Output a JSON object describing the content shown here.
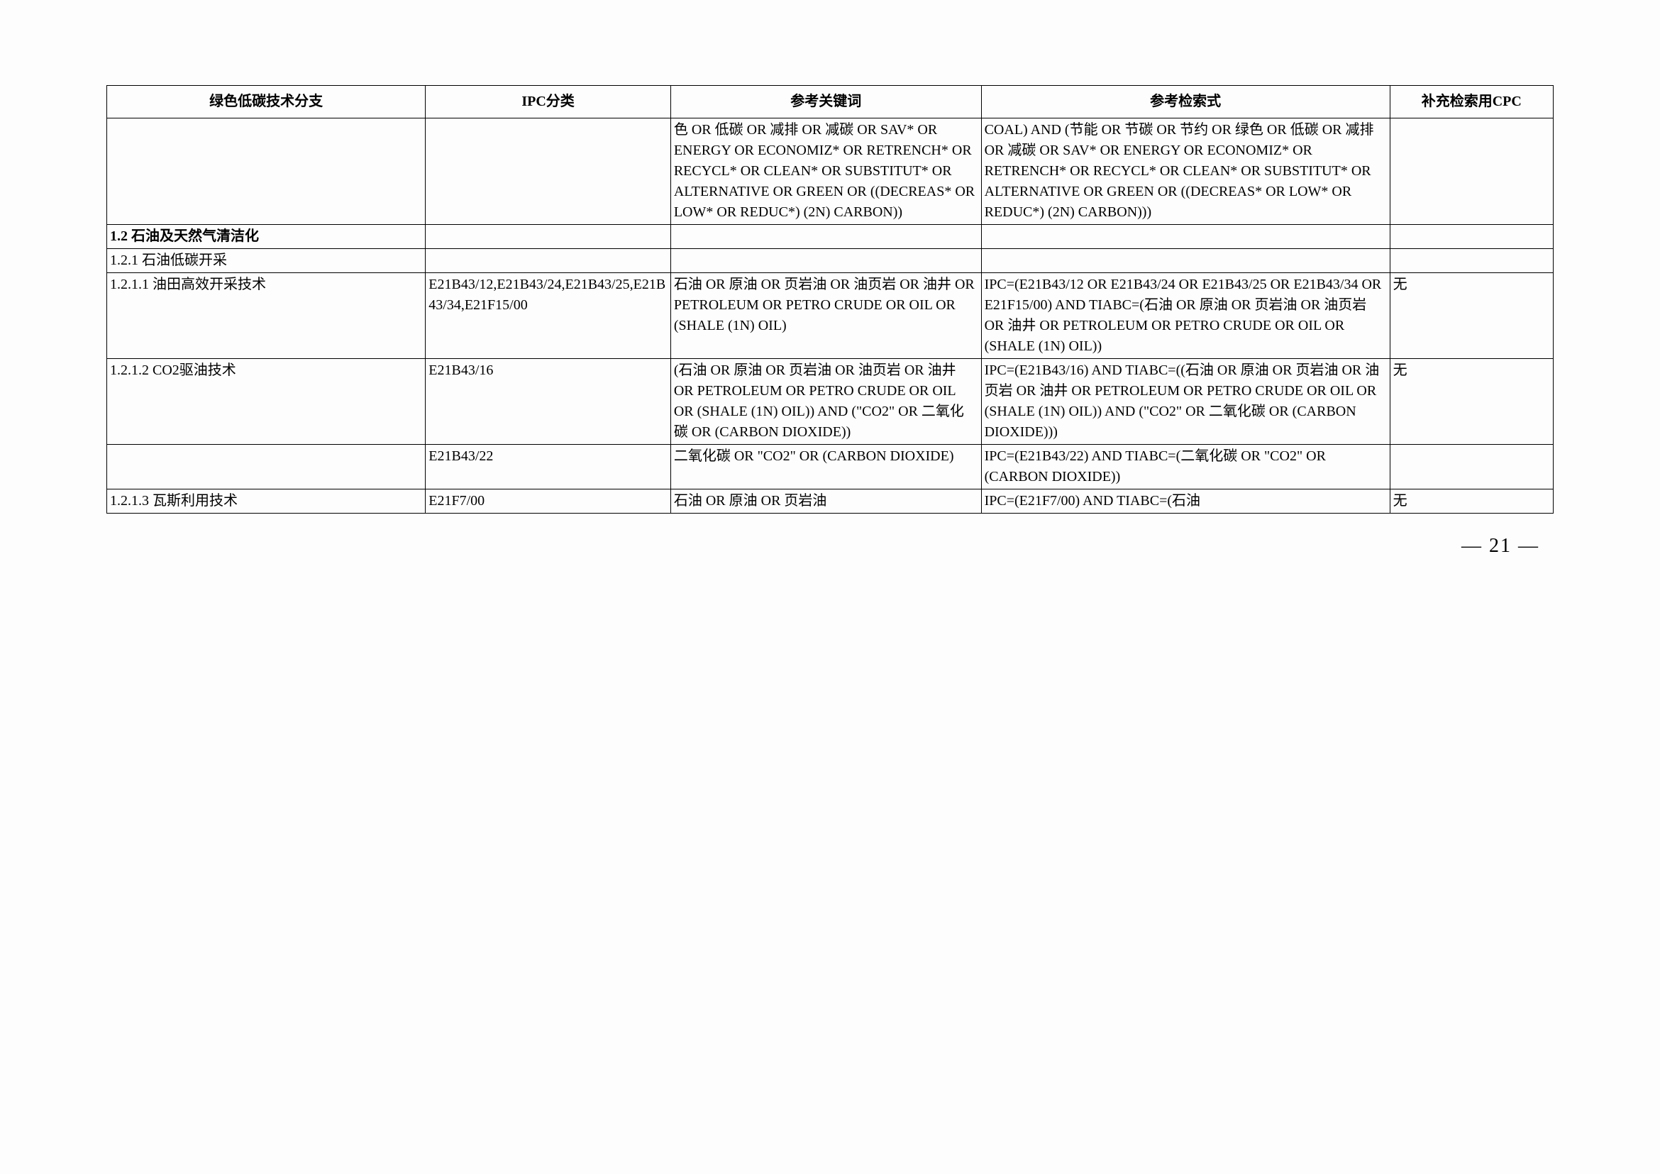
{
  "headers": {
    "c1": "绿色低碳技术分支",
    "c2": "IPC分类",
    "c3": "参考关键词",
    "c4": "参考检索式",
    "c5": "补充检索用CPC"
  },
  "rows": [
    {
      "c1": "",
      "c2": "",
      "c3": "色 OR 低碳 OR 减排 OR 减碳 OR SAV* OR ENERGY OR ECONOMIZ* OR RETRENCH* OR RECYCL* OR CLEAN* OR SUBSTITUT* OR ALTERNATIVE OR GREEN OR ((DECREAS* OR LOW* OR REDUC*) (2N) CARBON))",
      "c4": "COAL) AND (节能 OR 节碳 OR 节约 OR 绿色 OR 低碳 OR 减排 OR 减碳 OR SAV* OR ENERGY OR ECONOMIZ* OR RETRENCH* OR RECYCL* OR CLEAN* OR SUBSTITUT* OR ALTERNATIVE OR GREEN OR ((DECREAS* OR LOW* OR REDUC*) (2N) CARBON)))",
      "c5": "",
      "bold": false
    },
    {
      "c1": "1.2 石油及天然气清洁化",
      "c2": "",
      "c3": "",
      "c4": "",
      "c5": "",
      "bold": true
    },
    {
      "c1": "1.2.1 石油低碳开采",
      "c2": "",
      "c3": "",
      "c4": "",
      "c5": "",
      "bold": false
    },
    {
      "c1": "1.2.1.1 油田高效开采技术",
      "c2": "E21B43/12,E21B43/24,E21B43/25,E21B43/34,E21F15/00",
      "c3": "石油 OR 原油 OR 页岩油 OR 油页岩 OR 油井 OR PETROLEUM OR PETRO CRUDE OR OIL OR (SHALE (1N) OIL)",
      "c4": "IPC=(E21B43/12 OR E21B43/24 OR E21B43/25 OR E21B43/34 OR E21F15/00) AND TIABC=(石油 OR 原油 OR 页岩油 OR 油页岩 OR 油井 OR PETROLEUM OR PETRO CRUDE OR OIL OR (SHALE (1N) OIL))",
      "c5": "无",
      "bold": false
    },
    {
      "c1": "1.2.1.2 CO2驱油技术",
      "c2": "E21B43/16",
      "c3": "(石油 OR 原油 OR 页岩油 OR 油页岩 OR 油井 OR PETROLEUM OR PETRO CRUDE OR OIL OR (SHALE (1N) OIL)) AND (\"CO2\" OR 二氧化碳 OR (CARBON DIOXIDE))",
      "c4": "IPC=(E21B43/16) AND TIABC=((石油 OR 原油 OR 页岩油 OR 油页岩 OR 油井 OR PETROLEUM OR PETRO CRUDE OR OIL OR (SHALE (1N) OIL)) AND (\"CO2\" OR 二氧化碳 OR (CARBON DIOXIDE)))",
      "c5": "无",
      "bold": false
    },
    {
      "c1": "",
      "c2": "E21B43/22",
      "c3": "二氧化碳 OR \"CO2\" OR (CARBON DIOXIDE)",
      "c4": "IPC=(E21B43/22) AND TIABC=(二氧化碳 OR \"CO2\" OR (CARBON DIOXIDE))",
      "c5": "",
      "bold": false
    },
    {
      "c1": "1.2.1.3 瓦斯利用技术",
      "c2": "E21F7/00",
      "c3": "石油 OR 原油 OR 页岩油",
      "c4": "IPC=(E21F7/00) AND TIABC=(石油",
      "c5": "无",
      "bold": false
    }
  ],
  "page_number": "— 21 —"
}
